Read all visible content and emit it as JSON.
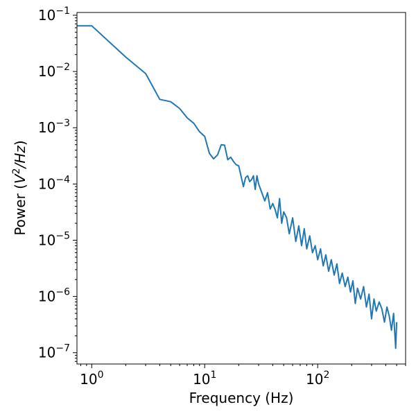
{
  "chart_data": {
    "type": "line",
    "title": "",
    "xlabel": "Frequency (Hz)",
    "ylabel_parts": {
      "prefix": "Power (",
      "v": "V",
      "v_exp": "2",
      "rest": "/Hz",
      "suffix": ")"
    },
    "x_scale": "log",
    "y_scale": "log",
    "xlim": [
      0.74,
      600
    ],
    "ylim": [
      6.3e-08,
      0.112
    ],
    "grid": false,
    "legend": "none",
    "x_ticks": [
      {
        "value": 1,
        "base": "10",
        "exp": "0"
      },
      {
        "value": 10,
        "base": "10",
        "exp": "1"
      },
      {
        "value": 100,
        "base": "10",
        "exp": "2"
      }
    ],
    "y_ticks": [
      {
        "value": 1e-07,
        "base": "10",
        "exp": "−7"
      },
      {
        "value": 1e-06,
        "base": "10",
        "exp": "−6"
      },
      {
        "value": 1e-05,
        "base": "10",
        "exp": "−5"
      },
      {
        "value": 0.0001,
        "base": "10",
        "exp": "−4"
      },
      {
        "value": 0.001,
        "base": "10",
        "exp": "−3"
      },
      {
        "value": 0.01,
        "base": "10",
        "exp": "−2"
      },
      {
        "value": 0.1,
        "base": "10",
        "exp": "−1"
      }
    ],
    "series": [
      {
        "color": "#1f77b4",
        "x": [
          0.5,
          1,
          2,
          3,
          4,
          5,
          6,
          7,
          8,
          9,
          10,
          11,
          12,
          13,
          14,
          15,
          16,
          17,
          18,
          19,
          20,
          22,
          23,
          24,
          25,
          26,
          27,
          28,
          29,
          30,
          32,
          34,
          36,
          38,
          40,
          42,
          44,
          46,
          48,
          50,
          53,
          56,
          60,
          64,
          68,
          72,
          76,
          80,
          85,
          90,
          95,
          100,
          106,
          112,
          118,
          125,
          132,
          140,
          148,
          156,
          165,
          175,
          185,
          195,
          205,
          215,
          225,
          240,
          255,
          270,
          285,
          300,
          315,
          330,
          350,
          370,
          390,
          410,
          430,
          450,
          470,
          490,
          500
        ],
        "y": [
          0.065,
          0.065,
          0.018,
          0.0092,
          0.0032,
          0.0029,
          0.0022,
          0.0015,
          0.0012,
          0.00085,
          0.0007,
          0.00035,
          0.00028,
          0.00033,
          0.0005,
          0.00049,
          0.00027,
          0.0003,
          0.00025,
          0.00022,
          0.00021,
          9e-05,
          0.00013,
          0.00014,
          0.00011,
          0.00012,
          0.00014,
          8e-05,
          0.00014,
          0.0001,
          7e-05,
          5e-05,
          7e-05,
          3.6e-05,
          4.5e-05,
          3.5e-05,
          2.5e-05,
          5.5e-05,
          2e-05,
          3.2e-05,
          2.5e-05,
          1.3e-05,
          2.5e-05,
          9.5e-06,
          1.8e-05,
          8e-06,
          1.6e-05,
          7e-06,
          1.2e-05,
          6e-06,
          8e-06,
          4.5e-06,
          7e-06,
          3.5e-06,
          5.5e-06,
          2.8e-06,
          4.5e-06,
          2.4e-06,
          3.8e-06,
          1.7e-06,
          2.6e-06,
          1.5e-06,
          2.2e-06,
          1.2e-06,
          1.9e-06,
          7.5e-07,
          1.4e-06,
          9e-07,
          1.5e-06,
          6.5e-07,
          1.1e-06,
          4e-07,
          9e-07,
          5.5e-07,
          8e-07,
          6e-07,
          3.5e-07,
          6.5e-07,
          4.5e-07,
          2.5e-07,
          5e-07,
          1.2e-07,
          3.5e-07
        ]
      }
    ]
  }
}
